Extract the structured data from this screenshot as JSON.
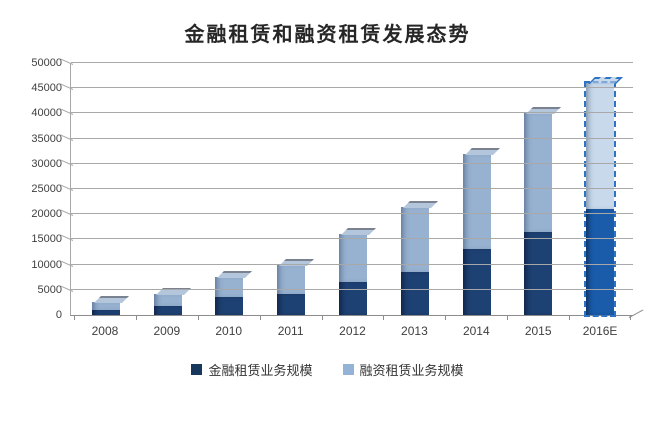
{
  "title": "金融租赁和融资租赁发展态势",
  "legend": {
    "items": [
      {
        "label": "金融租赁业务规模",
        "color": "#17375d"
      },
      {
        "label": "融资租赁业务规模",
        "color": "#95b3d7"
      }
    ]
  },
  "chart_data": {
    "type": "bar",
    "subtype": "3d-stacked-column",
    "title": "金融租赁和融资租赁发展态势",
    "categories": [
      "2008",
      "2009",
      "2010",
      "2011",
      "2012",
      "2013",
      "2014",
      "2015",
      "2016E"
    ],
    "series": [
      {
        "name": "金融租赁业务规模",
        "color": "#1e4173",
        "values": [
          900,
          1820,
          3640,
          4250,
          6600,
          8600,
          13000,
          16500,
          21000
        ]
      },
      {
        "name": "融资租赁业务规模",
        "color": "#97b1d0",
        "values": [
          1600,
          2380,
          3860,
          5750,
          9400,
          12900,
          19000,
          23500,
          25000
        ]
      }
    ],
    "totals": [
      2500,
      4200,
      7500,
      10000,
      16000,
      21500,
      32000,
      40000,
      46000
    ],
    "ylim": [
      0,
      50000
    ],
    "y_ticks": [
      0,
      5000,
      10000,
      15000,
      20000,
      25000,
      30000,
      35000,
      40000,
      45000,
      50000
    ],
    "grid": true,
    "legend_position": "bottom",
    "forecast_category": "2016E",
    "xlabel": "",
    "ylabel": ""
  },
  "colors": {
    "dark_series": "#1e4173",
    "dark_series_cap": "#51709b",
    "light_series": "#97b1d0",
    "light_series_cap": "#b4c6db",
    "forecast_dark": "#1a5caa",
    "forecast_light": "rgba(170,196,224,0.65)",
    "forecast_outline": "#2e74c4",
    "gridline": "#a8a8a8",
    "axis_text": "#3f3f3f",
    "background": "#ffffff"
  }
}
